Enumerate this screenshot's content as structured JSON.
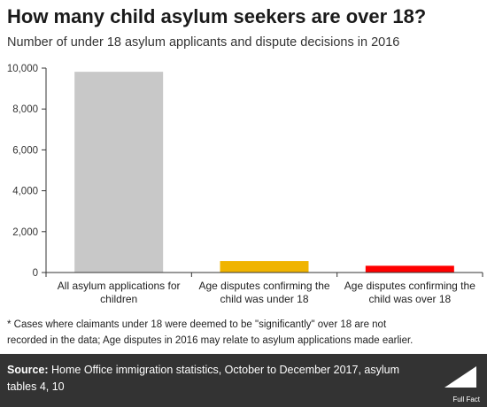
{
  "header": {
    "title": "How many child asylum seekers are over 18?",
    "subtitle": "Number of under 18 asylum applicants and dispute decisions in 2016"
  },
  "chart_data": {
    "type": "bar",
    "categories": [
      [
        "All asylum applications for",
        "children"
      ],
      [
        "Age disputes confirming the",
        "child was under 18"
      ],
      [
        "Age disputes confirming the",
        "child was over 18"
      ]
    ],
    "values": [
      9820,
      560,
      330
    ],
    "bar_colors": [
      "#c8c8c8",
      "#f0b400",
      "#ff0000"
    ],
    "ylim": [
      0,
      10000
    ],
    "yticks": [
      0,
      2000,
      4000,
      6000,
      8000,
      10000
    ],
    "ytick_labels": [
      "0",
      "2,000",
      "4,000",
      "6,000",
      "8,000",
      "10,000"
    ],
    "grid": false,
    "legend": "none"
  },
  "footnote": {
    "line1": "* Cases where claimants under 18 were deemed to be \"significantly\" over 18 are not",
    "line2": "recorded in the data; Age disputes in 2016 may relate to asylum applications made earlier."
  },
  "source": {
    "label": "Source:",
    "text": " Home Office immigration statistics, October to December 2017, asylum tables 4, 10"
  },
  "logo": {
    "icon": "full-fact-logo-icon",
    "text": "Full Fact"
  }
}
